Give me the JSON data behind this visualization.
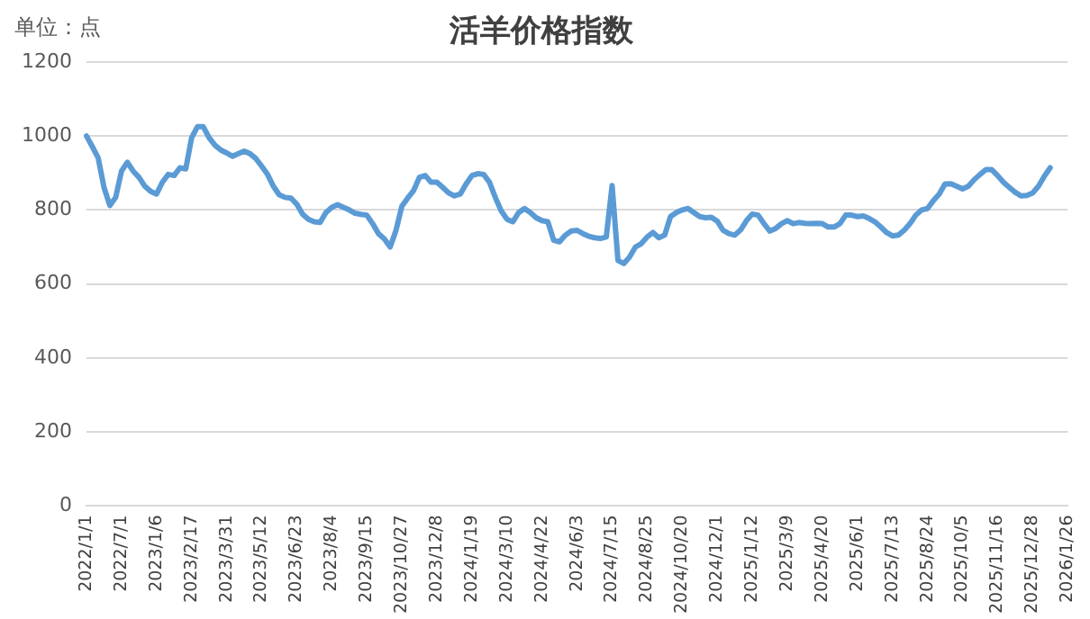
{
  "chart_data": {
    "type": "line",
    "title": "活羊价格指数",
    "annotations": [
      "单位：点"
    ],
    "categories": [
      "2022/1/1",
      null,
      null,
      null,
      null,
      null,
      "2022/7/1",
      null,
      null,
      null,
      null,
      null,
      "2023/1/6",
      null,
      null,
      null,
      null,
      null,
      "2023/2/17",
      null,
      null,
      null,
      null,
      null,
      "2023/3/31",
      null,
      null,
      null,
      null,
      null,
      "2023/5/12",
      null,
      null,
      null,
      null,
      null,
      "2023/6/23",
      null,
      null,
      null,
      null,
      null,
      "2023/8/4",
      null,
      null,
      null,
      null,
      null,
      "2023/9/15",
      null,
      null,
      null,
      null,
      null,
      "2023/10/27",
      null,
      null,
      null,
      null,
      null,
      "2023/12/8",
      null,
      null,
      null,
      null,
      null,
      "2024/1/19",
      null,
      null,
      null,
      null,
      null,
      "2024/3/10",
      null,
      null,
      null,
      null,
      null,
      "2024/4/22",
      null,
      null,
      null,
      null,
      null,
      "2024/6/3",
      null,
      null,
      null,
      null,
      null,
      "2024/7/15",
      null,
      null,
      null,
      null,
      null,
      "2024/8/25",
      null,
      null,
      null,
      null,
      null,
      "2024/10/20",
      null,
      null,
      null,
      null,
      null,
      "2024/12/1",
      null,
      null,
      null,
      null,
      null,
      "2025/1/12",
      null,
      null,
      null,
      null,
      null,
      "2025/3/9",
      null,
      null,
      null,
      null,
      null,
      "2025/4/20",
      null,
      null,
      null,
      null,
      null,
      "2025/6/1",
      null,
      null,
      null,
      null,
      null,
      "2025/7/13",
      null,
      null,
      null,
      null,
      null,
      "2025/8/24",
      null,
      null,
      null,
      null,
      null,
      "2025/10/5",
      null,
      null,
      null,
      null,
      null,
      "2025/11/16",
      null,
      null,
      null,
      null,
      null,
      "2025/12/28",
      null,
      null,
      null,
      null,
      null,
      "2026/1/26"
    ],
    "series": [
      {
        "color": "#5b9bd5",
        "values": [
          1000,
          971,
          941,
          861,
          812,
          834,
          905,
          929,
          905,
          888,
          864,
          850,
          843,
          875,
          896,
          893,
          914,
          911,
          995,
          1025,
          1025,
          995,
          975,
          962,
          954,
          945,
          952,
          959,
          952,
          939,
          918,
          896,
          864,
          841,
          834,
          832,
          816,
          789,
          775,
          768,
          766,
          793,
          807,
          814,
          807,
          800,
          791,
          788,
          786,
          763,
          736,
          722,
          700,
          745,
          810,
          832,
          852,
          888,
          893,
          875,
          875,
          861,
          846,
          838,
          843,
          870,
          893,
          898,
          896,
          875,
          834,
          798,
          775,
          768,
          793,
          804,
          793,
          779,
          771,
          768,
          718,
          714,
          732,
          743,
          745,
          736,
          729,
          725,
          723,
          727,
          866,
          664,
          655,
          673,
          700,
          709,
          727,
          739,
          725,
          732,
          782,
          793,
          800,
          804,
          793,
          782,
          779,
          780,
          770,
          745,
          736,
          732,
          746,
          771,
          789,
          786,
          763,
          743,
          750,
          763,
          771,
          763,
          766,
          764,
          763,
          764,
          763,
          754,
          754,
          763,
          786,
          786,
          782,
          784,
          777,
          768,
          754,
          739,
          730,
          732,
          745,
          763,
          786,
          800,
          804,
          825,
          843,
          870,
          871,
          864,
          857,
          864,
          882,
          896,
          909,
          909,
          893,
          875,
          861,
          848,
          838,
          839,
          846,
          864,
          891,
          914,
          null,
          null,
          null
        ]
      }
    ],
    "ylim": [
      0,
      1200
    ],
    "yticks": [
      0,
      200,
      400,
      600,
      800,
      1000,
      1200
    ],
    "grid": "y",
    "legend": false,
    "marker": "none",
    "line_style": "solid"
  }
}
